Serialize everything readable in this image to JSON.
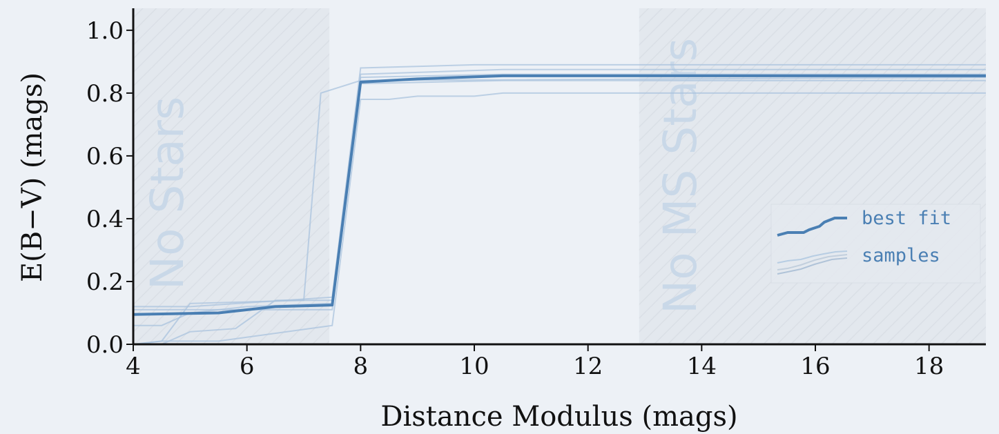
{
  "chart_data": {
    "type": "line",
    "xlabel": "Distance Modulus (mags)",
    "ylabel": "E(B−V) (mags)",
    "xlim": [
      4,
      19
    ],
    "ylim": [
      0,
      1.07
    ],
    "xticks": [
      4,
      6,
      8,
      10,
      12,
      14,
      16,
      18
    ],
    "yticks": [
      0.0,
      0.2,
      0.4,
      0.6,
      0.8,
      1.0
    ],
    "grid": false,
    "shaded_regions": [
      {
        "label": "No Stars",
        "x_range": [
          4,
          7.45
        ]
      },
      {
        "label": "No MS Stars",
        "x_range": [
          12.9,
          19
        ]
      }
    ],
    "legend": {
      "position": "right",
      "entries": [
        "best fit",
        "samples"
      ]
    },
    "colors": {
      "best_fit": "#4a7fb3",
      "samples": "#a9c3dd",
      "region": "#e3e8ee",
      "label": "#c9d8e8"
    },
    "series": [
      {
        "name": "best fit",
        "x": [
          4,
          5.5,
          6.5,
          7.5,
          8.0,
          9.0,
          10.5,
          19
        ],
        "y": [
          0.095,
          0.1,
          0.12,
          0.125,
          0.835,
          0.845,
          0.855,
          0.855
        ]
      },
      {
        "name": "samples",
        "lines": [
          {
            "x": [
              4,
              4.5,
              5.0,
              7.0,
              7.3,
              8.0,
              19
            ],
            "y": [
              0.0,
              0.01,
              0.13,
              0.14,
              0.8,
              0.84,
              0.85
            ]
          },
          {
            "x": [
              4,
              5.0,
              7.5,
              8.0,
              10,
              19
            ],
            "y": [
              0.12,
              0.12,
              0.15,
              0.88,
              0.89,
              0.89
            ]
          },
          {
            "x": [
              4,
              4.5,
              5.5,
              7.5,
              8.0,
              8.5,
              9.0,
              10.0,
              10.5,
              19
            ],
            "y": [
              0.0,
              0.01,
              0.01,
              0.06,
              0.78,
              0.78,
              0.79,
              0.79,
              0.8,
              0.8
            ]
          },
          {
            "x": [
              4,
              5.0,
              7.5,
              8.0,
              10.5,
              19
            ],
            "y": [
              0.11,
              0.11,
              0.11,
              0.86,
              0.875,
              0.875
            ]
          },
          {
            "x": [
              4,
              4.5,
              5.0,
              6.0,
              7.5,
              8.0,
              10.5,
              19
            ],
            "y": [
              0.06,
              0.06,
              0.1,
              0.12,
              0.13,
              0.83,
              0.84,
              0.84
            ]
          },
          {
            "x": [
              4,
              4.5,
              5.0,
              5.8,
              6.5,
              7.5,
              8.0,
              10.5,
              19
            ],
            "y": [
              0.0,
              0.0,
              0.04,
              0.05,
              0.14,
              0.14,
              0.85,
              0.86,
              0.86
            ]
          }
        ]
      }
    ]
  }
}
